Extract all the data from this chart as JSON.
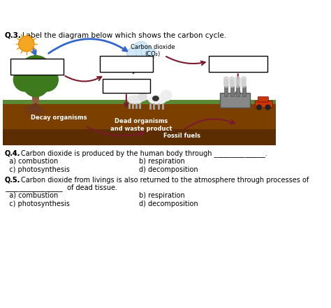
{
  "title_q3": "Q.3. Label the diagram below which shows the carbon cycle.",
  "q4_text": "Q.4. Carbon dioxide is produced by the human body through _______________.",
  "q4_a": "  a) combustion",
  "q4_b": "b) respiration",
  "q4_c": "  c) photosynthesis",
  "q4_d": "d) decomposition",
  "q5_text": "Q.5. Carbon dioxide from livings is also returned to the atmosphere through processes of",
  "q5_text2": "_________________  of dead tissue.",
  "q5_a": "  a) combustion",
  "q5_b": "b) respiration",
  "q5_c": "  c) photosynthesis",
  "q5_d": "d) decomposition",
  "co2_label": "Carbon dioxide\n(CO₂)",
  "decay_label": "Decay organisms",
  "dead_label": "Dead organisms\nand waste product",
  "fossil_label": "Fossil fuels",
  "bg_color": "#ffffff",
  "arrow_blue": "#3366cc",
  "arrow_dark_red": "#7b1a2e",
  "box_color": "#000000",
  "soil_color": "#8B4513",
  "soil_dark": "#6B3410",
  "grass_color": "#4a7c2f",
  "sun_color": "#f5a623",
  "cloud_color": "#d0e8f8",
  "text_color": "#000000"
}
